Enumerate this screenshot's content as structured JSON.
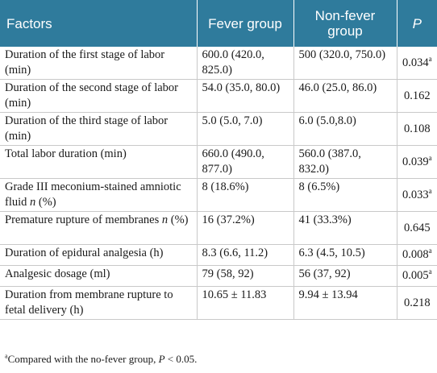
{
  "header": {
    "factors": "Factors",
    "fever": "Fever group",
    "nonfever": "Non-fever group",
    "p": "P"
  },
  "rows": [
    {
      "factor": "Duration of the first stage of labor (min)",
      "fever": "600.0 (420.0, 825.0)",
      "nonfever": "500 (320.0, 750.0)",
      "p": "0.034",
      "sup": "a"
    },
    {
      "factor": "Duration of the second stage of labor (min)",
      "fever": "54.0 (35.0, 80.0)",
      "nonfever": "46.0 (25.0, 86.0)",
      "p": "0.162",
      "sup": ""
    },
    {
      "factor": "Duration of the third stage of labor (min)",
      "fever": "5.0 (5.0, 7.0)",
      "nonfever": "6.0 (5.0,8.0)",
      "p": "0.108",
      "sup": ""
    },
    {
      "factor": "Total labor duration (min)",
      "fever": "660.0 (490.0, 877.0)",
      "nonfever": "560.0 (387.0, 832.0)",
      "p": "0.039",
      "sup": "a"
    },
    {
      "factor_main": "Grade III meconium-stained amniotic fluid ",
      "factor_italic": "n",
      "factor_tail": " (%)",
      "fever": "8 (18.6%)",
      "nonfever": "8 (6.5%)",
      "p": "0.033",
      "sup": "a"
    },
    {
      "factor_main": "Premature rupture of membranes ",
      "factor_italic": "n",
      "factor_tail": " (%)",
      "fever": "16 (37.2%)",
      "nonfever": "41 (33.3%)",
      "p": "0.645",
      "sup": ""
    },
    {
      "factor": "Duration of epidural analgesia (h)",
      "fever": "8.3 (6.6, 11.2)",
      "nonfever": "6.3 (4.5, 10.5)",
      "p": "0.008",
      "sup": "a"
    },
    {
      "factor": "Analgesic dosage (ml)",
      "fever": "79 (58, 92)",
      "nonfever": "56 (37, 92)",
      "p": "0.005",
      "sup": "a"
    },
    {
      "factor": "Duration from membrane rupture to fetal delivery (h)",
      "fever": "10.65 ± 11.83",
      "nonfever": "9.94 ± 13.94",
      "p": "0.218",
      "sup": ""
    }
  ],
  "footnote": {
    "sup": "a",
    "text": "Compared with the no-fever group, ",
    "p": "P",
    "tail": " < 0.05."
  }
}
